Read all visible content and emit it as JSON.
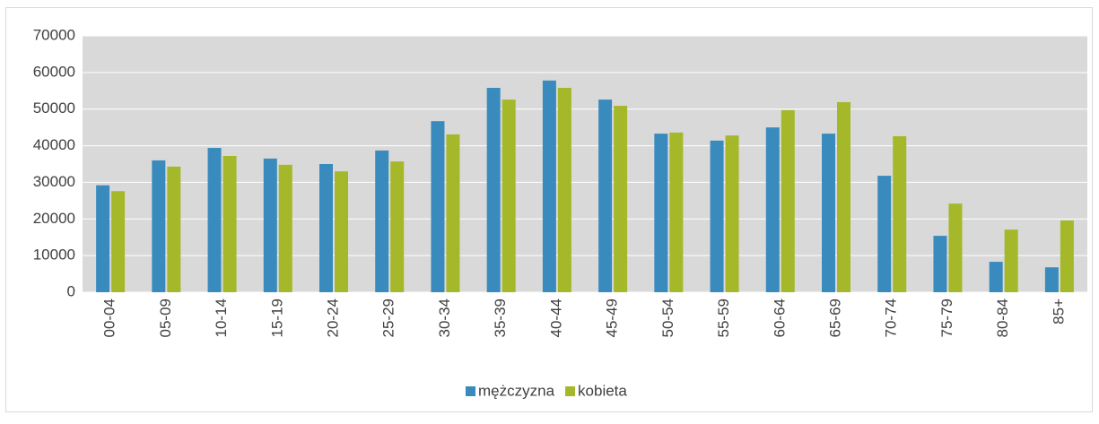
{
  "chart_data": {
    "type": "bar",
    "categories": [
      "00-04",
      "05-09",
      "10-14",
      "15-19",
      "20-24",
      "25-29",
      "30-34",
      "35-39",
      "40-44",
      "45-49",
      "50-54",
      "55-59",
      "60-64",
      "65-69",
      "70-74",
      "75-79",
      "80-84",
      "85+"
    ],
    "series": [
      {
        "name": "mężczyzna",
        "color": "#3a8bbd",
        "values": [
          29200,
          36000,
          39400,
          36500,
          35000,
          38700,
          46700,
          55800,
          57800,
          52600,
          43300,
          41400,
          45000,
          43300,
          31800,
          15400,
          8300,
          6800
        ]
      },
      {
        "name": "kobieta",
        "color": "#a5b82a",
        "values": [
          27600,
          34300,
          37200,
          34800,
          33000,
          35700,
          43100,
          52600,
          55800,
          50900,
          43600,
          42800,
          49700,
          51900,
          42600,
          24200,
          17100,
          19600
        ]
      }
    ],
    "ylim": [
      0,
      70000
    ],
    "yticks": [
      0,
      10000,
      20000,
      30000,
      40000,
      50000,
      60000,
      70000
    ],
    "grid": true,
    "legend": "bottom"
  }
}
